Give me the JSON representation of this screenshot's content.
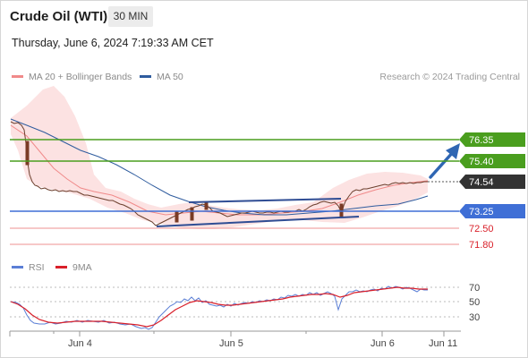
{
  "header": {
    "instrument": "Crude Oil (WTI)",
    "timeframe": "30 MIN",
    "datetime": "Thursday, June 6, 2024 7:19:33 AM CET"
  },
  "legend": {
    "ma20": "MA 20 + Bollinger Bands",
    "ma50": "MA 50",
    "credit": "Research © 2024 Trading Central"
  },
  "price_levels": [
    {
      "label": "76.35",
      "value": 76.35,
      "style": "resistance"
    },
    {
      "label": "75.40",
      "value": 75.4,
      "style": "resistance"
    },
    {
      "label": "74.54",
      "value": 74.54,
      "style": "last"
    },
    {
      "label": "73.25",
      "value": 73.25,
      "style": "pivot"
    },
    {
      "label": "72.50",
      "value": 72.5,
      "style": "support"
    },
    {
      "label": "71.80",
      "value": 71.8,
      "style": "support"
    }
  ],
  "rsi": {
    "legend_rsi": "RSI",
    "legend_9ma": "9MA",
    "levels": [
      "70",
      "50",
      "30"
    ]
  },
  "x_axis": {
    "labels": [
      "Jun 4",
      "Jun 5",
      "Jun 6",
      "Jun 11"
    ]
  },
  "colors": {
    "resistance": "#4a9e1e",
    "pivot": "#3f6fd6",
    "last": "#333333",
    "support": "#f2a6a6",
    "support_text": "#d9202a",
    "ma20": "#f08a8a",
    "ma50": "#2f5c9e",
    "bollinger": "#fcdede",
    "channel": "#2f4d94",
    "arrow": "#2f66b3",
    "rsi": "#5b7fd6",
    "rsi_ma": "#d9202a"
  },
  "chart_data": {
    "type": "line",
    "title": "Crude Oil (WTI)",
    "interval": "30 MIN",
    "ylim": [
      71.3,
      77.3
    ],
    "x_ticks": [
      "Jun 4",
      "Jun 5",
      "Jun 6",
      "Jun 11"
    ],
    "price_path": [
      {
        "t": "Jun 3 early",
        "price": 76.9
      },
      {
        "t": "Jun 3",
        "price": 76.6
      },
      {
        "t": "Jun 3",
        "price": 75.6
      },
      {
        "t": "Jun 3 late",
        "price": 74.7
      },
      {
        "t": "Jun 3 late",
        "price": 74.5
      },
      {
        "t": "Jun 4",
        "price": 74.35
      },
      {
        "t": "Jun 4",
        "price": 74.1
      },
      {
        "t": "Jun 4 mid",
        "price": 73.8
      },
      {
        "t": "Jun 4 late",
        "price": 73.1
      },
      {
        "t": "Jun 4 late",
        "price": 72.8
      },
      {
        "t": "Jun 5 early",
        "price": 73.15
      },
      {
        "t": "Jun 5",
        "price": 73.25
      },
      {
        "t": "Jun 5 mid",
        "price": 73.1
      },
      {
        "t": "Jun 5 late",
        "price": 73.3
      },
      {
        "t": "Jun 5 late",
        "price": 73.6
      },
      {
        "t": "Jun 6",
        "price": 74.3
      },
      {
        "t": "Jun 6",
        "price": 74.54
      }
    ],
    "levels": [
      76.35,
      75.4,
      74.54,
      73.25,
      72.5,
      71.8
    ],
    "rsi_levels": [
      70,
      50,
      30
    ]
  }
}
